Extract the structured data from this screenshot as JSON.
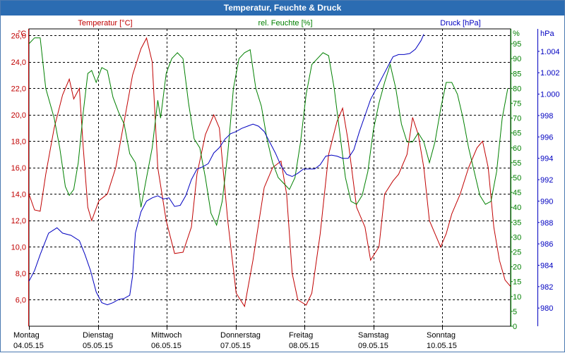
{
  "window": {
    "title": "Temperatur, Feuchte & Druck"
  },
  "colors": {
    "temperature": "#c00000",
    "humidity": "#008000",
    "pressure": "#0000c0",
    "titlebar": "#2b6cb2"
  },
  "chart_data": {
    "type": "line",
    "title": "Temperatur, Feuchte & Druck",
    "grid": true,
    "x_axis": {
      "days": [
        {
          "name": "Montag",
          "date": "04.05.15"
        },
        {
          "name": "Dienstag",
          "date": "05.05.15"
        },
        {
          "name": "Mittwoch",
          "date": "06.05.15"
        },
        {
          "name": "Donnerstag",
          "date": "07.05.15"
        },
        {
          "name": "Freitag",
          "date": "08.05.15"
        },
        {
          "name": "Samstag",
          "date": "09.05.15"
        },
        {
          "name": "Sonntag",
          "date": "10.05.15"
        }
      ],
      "range_days": [
        0,
        7.05
      ]
    },
    "axes": {
      "temperature": {
        "label": "Temperatur [°C]",
        "unit": "°C",
        "min": 4.0,
        "max": 26.5,
        "ticks": [
          "6,0",
          "8,0",
          "10,0",
          "12,0",
          "14,0",
          "16,0",
          "18,0",
          "20,0",
          "22,0",
          "24,0",
          "26,0"
        ]
      },
      "humidity": {
        "label": "rel. Feuchte [%]",
        "unit": "%",
        "min": 0,
        "max": 100,
        "ticks": [
          "0",
          "5",
          "10",
          "15",
          "20",
          "25",
          "30",
          "35",
          "40",
          "45",
          "50",
          "55",
          "60",
          "65",
          "70",
          "75",
          "80",
          "85",
          "90",
          "95"
        ]
      },
      "pressure": {
        "label": "Druck [hPa]",
        "unit": "hPa",
        "min": 978.3,
        "max": 1006.1,
        "ticks": [
          "980",
          "982",
          "984",
          "986",
          "988",
          "990",
          "992",
          "994",
          "996",
          "998",
          "1.000",
          "1.002",
          "1.004"
        ]
      }
    },
    "series": [
      {
        "name": "Temperatur [°C]",
        "axis": "temperature",
        "points": [
          [
            0,
            14
          ],
          [
            0.1,
            12.8
          ],
          [
            0.2,
            12.7
          ],
          [
            0.3,
            15.5
          ],
          [
            0.45,
            19
          ],
          [
            0.6,
            21.5
          ],
          [
            0.72,
            22.7
          ],
          [
            0.8,
            21.2
          ],
          [
            0.9,
            22
          ],
          [
            0.97,
            17.5
          ],
          [
            1.05,
            13
          ],
          [
            1.12,
            12
          ],
          [
            1.25,
            13.5
          ],
          [
            1.4,
            14
          ],
          [
            1.55,
            16
          ],
          [
            1.7,
            19.5
          ],
          [
            1.85,
            23
          ],
          [
            2.0,
            25
          ],
          [
            2.1,
            25.8
          ],
          [
            2.2,
            24
          ],
          [
            2.3,
            16
          ],
          [
            2.45,
            12
          ],
          [
            2.6,
            9.5
          ],
          [
            2.75,
            9.6
          ],
          [
            2.9,
            11.5
          ],
          [
            3.0,
            15.5
          ],
          [
            3.15,
            18.5
          ],
          [
            3.3,
            20
          ],
          [
            3.4,
            19
          ],
          [
            3.55,
            12
          ],
          [
            3.7,
            6.5
          ],
          [
            3.85,
            5.5
          ],
          [
            4.0,
            9
          ],
          [
            4.2,
            14.5
          ],
          [
            4.35,
            16
          ],
          [
            4.5,
            16.5
          ],
          [
            4.6,
            14
          ],
          [
            4.7,
            8
          ],
          [
            4.8,
            6
          ],
          [
            4.95,
            5.6
          ],
          [
            5.05,
            6.5
          ],
          [
            5.2,
            11
          ],
          [
            5.35,
            17
          ],
          [
            5.5,
            19.5
          ],
          [
            5.6,
            20.5
          ],
          [
            5.7,
            18
          ],
          [
            5.85,
            13
          ],
          [
            6.0,
            11.5
          ],
          [
            6.1,
            9
          ],
          [
            6.25,
            10
          ],
          [
            6.35,
            14
          ],
          [
            6.5,
            15
          ],
          [
            6.6,
            15.5
          ],
          [
            6.75,
            17
          ],
          [
            6.85,
            19.8
          ],
          [
            6.95,
            18.5
          ],
          [
            7.05,
            16
          ],
          [
            7.15,
            12
          ],
          [
            7.25,
            11
          ],
          [
            7.35,
            10
          ],
          [
            7.45,
            11
          ],
          [
            7.55,
            12.5
          ],
          [
            7.7,
            14
          ],
          [
            7.85,
            16
          ],
          [
            8.0,
            17.5
          ],
          [
            8.1,
            18
          ],
          [
            8.2,
            16
          ],
          [
            8.3,
            11.5
          ],
          [
            8.4,
            9
          ],
          [
            8.5,
            7.5
          ],
          [
            8.6,
            7
          ]
        ]
      },
      {
        "name": "rel. Feuchte [%]",
        "axis": "humidity",
        "points": [
          [
            0,
            95
          ],
          [
            0.1,
            97
          ],
          [
            0.2,
            97
          ],
          [
            0.3,
            80
          ],
          [
            0.45,
            70
          ],
          [
            0.55,
            60
          ],
          [
            0.65,
            47
          ],
          [
            0.72,
            44
          ],
          [
            0.8,
            46
          ],
          [
            0.88,
            55
          ],
          [
            0.97,
            72
          ],
          [
            1.05,
            85
          ],
          [
            1.12,
            86
          ],
          [
            1.2,
            82
          ],
          [
            1.3,
            87
          ],
          [
            1.4,
            86
          ],
          [
            1.5,
            77
          ],
          [
            1.6,
            72
          ],
          [
            1.7,
            68
          ],
          [
            1.8,
            58
          ],
          [
            1.9,
            55
          ],
          [
            2.0,
            40
          ],
          [
            2.1,
            50
          ],
          [
            2.2,
            60
          ],
          [
            2.3,
            76
          ],
          [
            2.35,
            70
          ],
          [
            2.45,
            85
          ],
          [
            2.55,
            90
          ],
          [
            2.65,
            92
          ],
          [
            2.75,
            90
          ],
          [
            2.85,
            75
          ],
          [
            2.95,
            63
          ],
          [
            3.05,
            60
          ],
          [
            3.15,
            50
          ],
          [
            3.25,
            38
          ],
          [
            3.35,
            34
          ],
          [
            3.45,
            42
          ],
          [
            3.55,
            58
          ],
          [
            3.65,
            80
          ],
          [
            3.75,
            90
          ],
          [
            3.85,
            92
          ],
          [
            3.95,
            93
          ],
          [
            4.05,
            80
          ],
          [
            4.15,
            74
          ],
          [
            4.25,
            63
          ],
          [
            4.35,
            55
          ],
          [
            4.45,
            50
          ],
          [
            4.55,
            48
          ],
          [
            4.65,
            46
          ],
          [
            4.75,
            50
          ],
          [
            4.85,
            62
          ],
          [
            4.95,
            78
          ],
          [
            5.05,
            88
          ],
          [
            5.15,
            90
          ],
          [
            5.25,
            92
          ],
          [
            5.35,
            91
          ],
          [
            5.45,
            80
          ],
          [
            5.55,
            65
          ],
          [
            5.65,
            50
          ],
          [
            5.75,
            42
          ],
          [
            5.85,
            41
          ],
          [
            5.95,
            44
          ],
          [
            6.05,
            52
          ],
          [
            6.15,
            66
          ],
          [
            6.25,
            75
          ],
          [
            6.35,
            82
          ],
          [
            6.45,
            88
          ],
          [
            6.55,
            80
          ],
          [
            6.65,
            68
          ],
          [
            6.75,
            62
          ],
          [
            6.85,
            62
          ],
          [
            6.95,
            65
          ],
          [
            7.05,
            62
          ],
          [
            7.15,
            55
          ],
          [
            7.25,
            62
          ],
          [
            7.35,
            73
          ],
          [
            7.45,
            82
          ],
          [
            7.55,
            82
          ],
          [
            7.65,
            78
          ],
          [
            7.75,
            70
          ],
          [
            7.85,
            60
          ],
          [
            7.95,
            52
          ],
          [
            8.05,
            44
          ],
          [
            8.15,
            41
          ],
          [
            8.25,
            42
          ],
          [
            8.35,
            52
          ],
          [
            8.45,
            70
          ],
          [
            8.55,
            80
          ]
        ]
      },
      {
        "name": "Druck [hPa]",
        "axis": "pressure",
        "points": [
          [
            0,
            982.5
          ],
          [
            0.1,
            983.5
          ],
          [
            0.2,
            985
          ],
          [
            0.35,
            987
          ],
          [
            0.5,
            987.5
          ],
          [
            0.6,
            987
          ],
          [
            0.75,
            986.8
          ],
          [
            0.9,
            986.3
          ],
          [
            1.0,
            985
          ],
          [
            1.1,
            983.5
          ],
          [
            1.2,
            981.5
          ],
          [
            1.3,
            980.5
          ],
          [
            1.4,
            980.3
          ],
          [
            1.5,
            980.5
          ],
          [
            1.6,
            980.8
          ],
          [
            1.7,
            980.9
          ],
          [
            1.8,
            981.2
          ],
          [
            1.85,
            983
          ],
          [
            1.9,
            987
          ],
          [
            2.0,
            989
          ],
          [
            2.1,
            990
          ],
          [
            2.2,
            990.3
          ],
          [
            2.3,
            990.5
          ],
          [
            2.4,
            990.2
          ],
          [
            2.5,
            990.3
          ],
          [
            2.6,
            989.5
          ],
          [
            2.7,
            989.6
          ],
          [
            2.8,
            990.5
          ],
          [
            2.9,
            992
          ],
          [
            3.0,
            993
          ],
          [
            3.1,
            993.2
          ],
          [
            3.2,
            993.5
          ],
          [
            3.3,
            994.5
          ],
          [
            3.4,
            995
          ],
          [
            3.5,
            995.8
          ],
          [
            3.6,
            996.3
          ],
          [
            3.7,
            996.5
          ],
          [
            3.8,
            996.8
          ],
          [
            3.9,
            997
          ],
          [
            4.0,
            997.2
          ],
          [
            4.1,
            997
          ],
          [
            4.2,
            996.5
          ],
          [
            4.3,
            995.5
          ],
          [
            4.4,
            994.5
          ],
          [
            4.5,
            993.3
          ],
          [
            4.6,
            992.5
          ],
          [
            4.7,
            992.3
          ],
          [
            4.8,
            992.6
          ],
          [
            4.9,
            993
          ],
          [
            5.0,
            993
          ],
          [
            5.1,
            993
          ],
          [
            5.2,
            993.4
          ],
          [
            5.3,
            994.2
          ],
          [
            5.4,
            994.3
          ],
          [
            5.5,
            994.2
          ],
          [
            5.6,
            994
          ],
          [
            5.7,
            994
          ],
          [
            5.8,
            994.8
          ],
          [
            5.9,
            996.5
          ],
          [
            6.0,
            998
          ],
          [
            6.1,
            999.5
          ],
          [
            6.2,
            1000.5
          ],
          [
            6.3,
            1001.5
          ],
          [
            6.4,
            1002.5
          ],
          [
            6.5,
            1003.5
          ],
          [
            6.6,
            1003.7
          ],
          [
            6.7,
            1003.7
          ],
          [
            6.8,
            1003.8
          ],
          [
            6.9,
            1004.2
          ],
          [
            7.0,
            1005
          ],
          [
            7.05,
            1005.6
          ]
        ]
      }
    ]
  }
}
